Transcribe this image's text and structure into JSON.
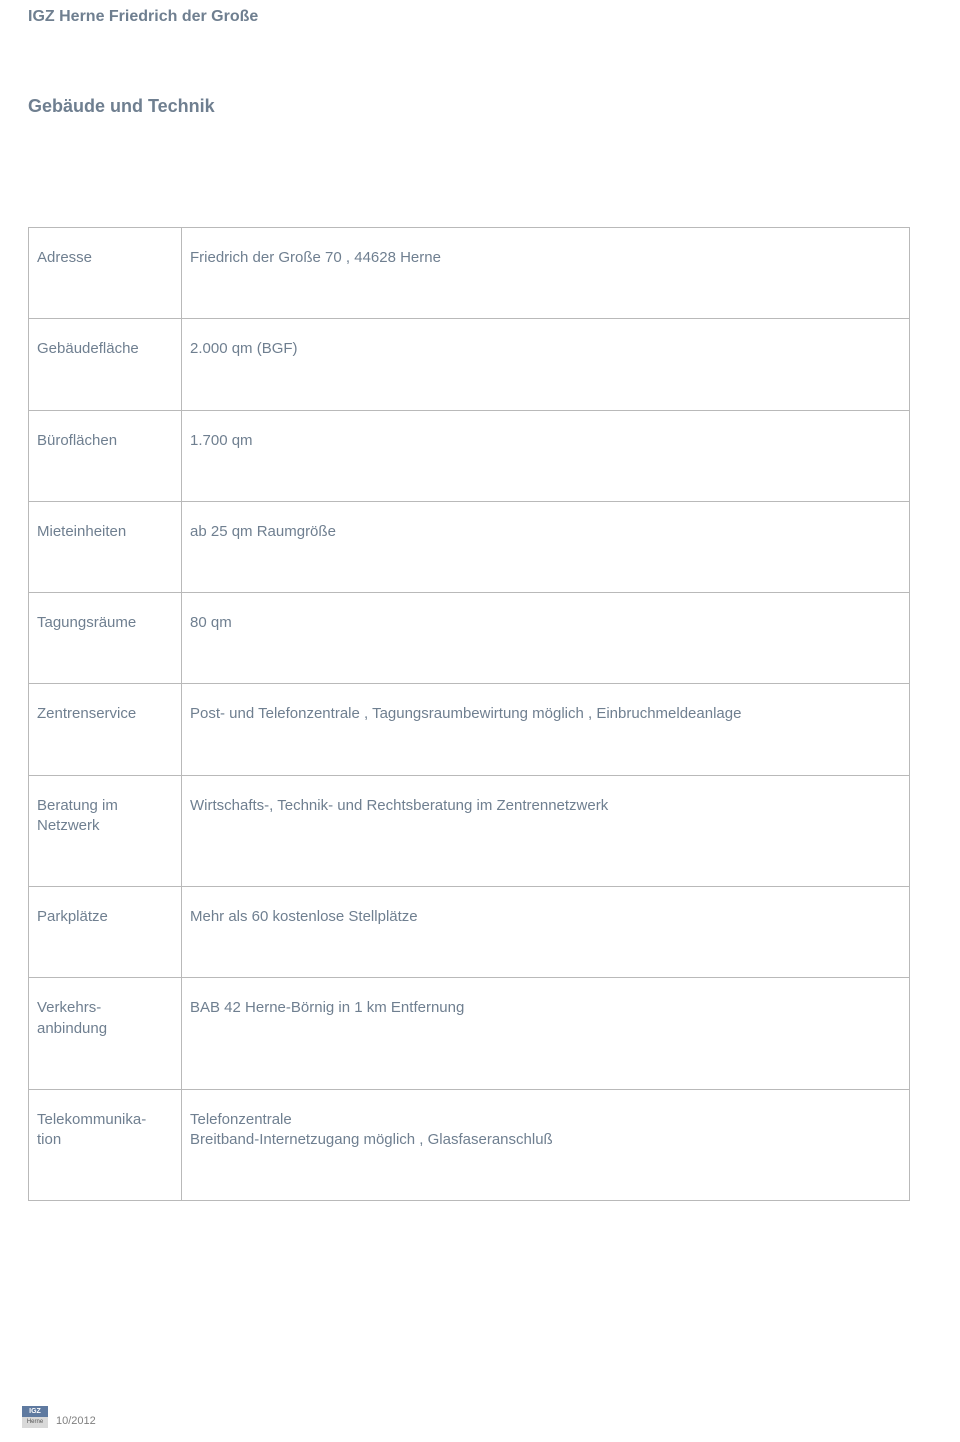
{
  "doc_title": "IGZ Herne Friedrich der Große",
  "section_title": "Gebäude und Technik",
  "rows": [
    {
      "label": "Adresse",
      "value": "Friedrich der Große 70 , 44628 Herne"
    },
    {
      "label": "Gebäudefläche",
      "value": "2.000 qm (BGF)"
    },
    {
      "label": "Büroflächen",
      "value": "1.700 qm"
    },
    {
      "label": "Mieteinheiten",
      "value": "ab 25 qm Raumgröße"
    },
    {
      "label": "Tagungsräume",
      "value": "80 qm"
    },
    {
      "label": "Zentrenservice",
      "value": "Post- und Telefonzentrale , Tagungsraumbewirtung möglich , Einbruchmeldeanlage"
    },
    {
      "label": "Beratung im Netzwerk",
      "value": "Wirtschafts-, Technik- und Rechtsberatung im Zentrennetzwerk"
    },
    {
      "label": "Parkplätze",
      "value": "Mehr als 60 kostenlose Stellplätze"
    },
    {
      "label": "Verkehrs-\nanbindung",
      "value": "BAB 42 Herne-Börnig in 1 km Entfernung"
    },
    {
      "label": "Telekommunika-\ntion",
      "value": "Telefonzentrale\nBreitband-Internetzugang möglich , Glasfaseranschluß"
    }
  ],
  "footer": {
    "logo_top": "IGZ",
    "logo_bottom": "Herne",
    "date": "10/2012"
  },
  "colors": {
    "text": "#6f7f90",
    "border": "#b9b9b9",
    "footer_text": "#808080",
    "logo_top_bg": "#5f7aa0",
    "logo_bot_bg": "#d9d9d9"
  }
}
